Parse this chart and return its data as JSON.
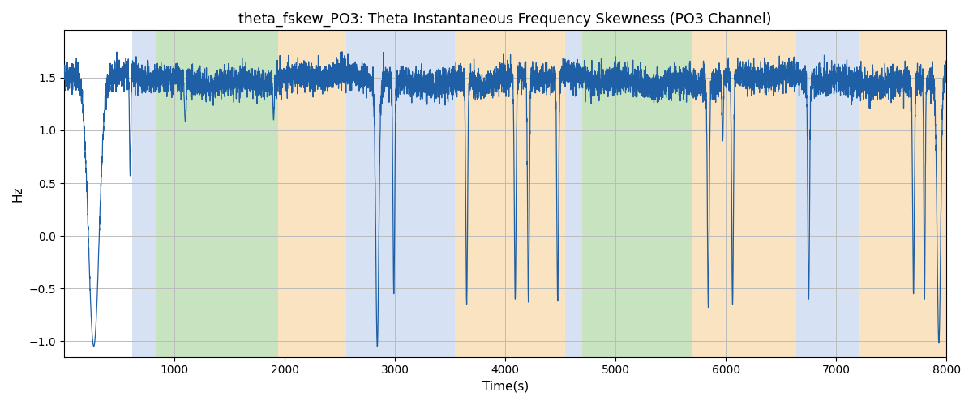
{
  "title": "theta_fskew_PO3: Theta Instantaneous Frequency Skewness (PO3 Channel)",
  "xlabel": "Time(s)",
  "ylabel": "Hz",
  "xlim": [
    0,
    8000
  ],
  "ylim": [
    -1.15,
    1.95
  ],
  "yticks": [
    -1.0,
    -0.5,
    0.0,
    0.5,
    1.0,
    1.5
  ],
  "xticks": [
    1000,
    2000,
    3000,
    4000,
    5000,
    6000,
    7000,
    8000
  ],
  "line_color": "#1f5fa6",
  "line_width": 0.9,
  "background_color": "#ffffff",
  "grid_color": "#bbbbbb",
  "colored_regions": [
    {
      "xmin": 620,
      "xmax": 840,
      "color": "#aec6e8",
      "alpha": 0.5
    },
    {
      "xmin": 840,
      "xmax": 1940,
      "color": "#90c980",
      "alpha": 0.5
    },
    {
      "xmin": 1940,
      "xmax": 2555,
      "color": "#f5c882",
      "alpha": 0.5
    },
    {
      "xmin": 2555,
      "xmax": 3540,
      "color": "#aec6e8",
      "alpha": 0.5
    },
    {
      "xmin": 3540,
      "xmax": 4540,
      "color": "#f5c882",
      "alpha": 0.5
    },
    {
      "xmin": 4540,
      "xmax": 4700,
      "color": "#aec6e8",
      "alpha": 0.5
    },
    {
      "xmin": 4700,
      "xmax": 5700,
      "color": "#90c980",
      "alpha": 0.5
    },
    {
      "xmin": 5700,
      "xmax": 6640,
      "color": "#f5c882",
      "alpha": 0.5
    },
    {
      "xmin": 6640,
      "xmax": 7200,
      "color": "#aec6e8",
      "alpha": 0.5
    },
    {
      "xmin": 7200,
      "xmax": 8000,
      "color": "#f5c882",
      "alpha": 0.5
    }
  ],
  "seed": 42,
  "n_points": 8001,
  "signal_base": 1.48,
  "signal_noise_std": 0.07
}
